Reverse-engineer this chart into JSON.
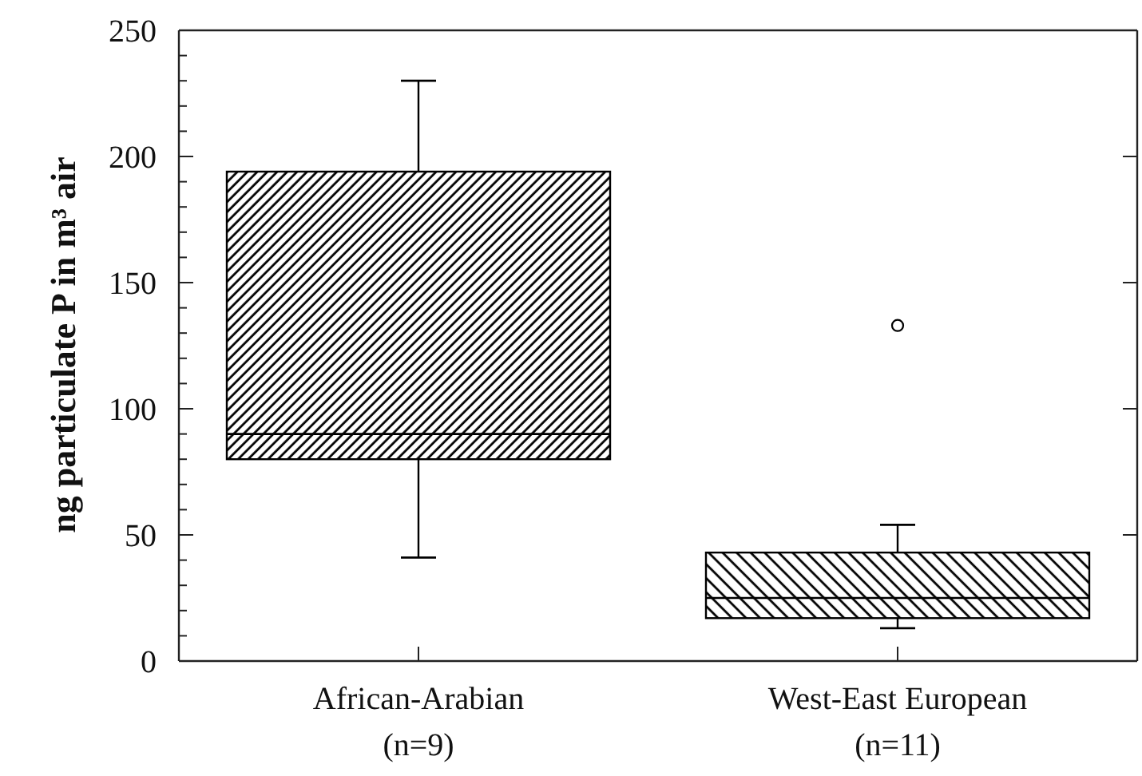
{
  "chart_data": {
    "type": "box",
    "ylabel": "ng particulate P in m³ air",
    "categories": [
      "African-Arabian\n(n=9)",
      "West-East European\n(n=11)"
    ],
    "color": "#000000",
    "boxes": [
      {
        "low": 41,
        "q1": 80,
        "median": 90,
        "q3": 194,
        "high": 230
      },
      {
        "low": 13,
        "q1": 17,
        "median": 25,
        "q3": 43,
        "high": 54,
        "outliers": [
          133
        ]
      }
    ],
    "ylim": [
      0,
      250
    ],
    "yticks": [
      0,
      {
        "value": 10,
        "label": null
      },
      {
        "value": 20,
        "label": null
      },
      {
        "value": 30,
        "label": null
      },
      {
        "value": 40,
        "label": null
      },
      50,
      {
        "value": 60,
        "label": null
      },
      {
        "value": 70,
        "label": null
      },
      {
        "value": 80,
        "label": null
      },
      {
        "value": 90,
        "label": null
      },
      100,
      {
        "value": 110,
        "label": null
      },
      {
        "value": 120,
        "label": null
      },
      {
        "value": 130,
        "label": null
      },
      {
        "value": 140,
        "label": null
      },
      150,
      {
        "value": 160,
        "label": null
      },
      {
        "value": 170,
        "label": null
      },
      {
        "value": 180,
        "label": null
      },
      {
        "value": 190,
        "label": null
      },
      200,
      {
        "value": 210,
        "label": null
      },
      {
        "value": 220,
        "label": null
      },
      {
        "value": 230,
        "label": null
      },
      {
        "value": 240,
        "label": null
      },
      250
    ]
  }
}
